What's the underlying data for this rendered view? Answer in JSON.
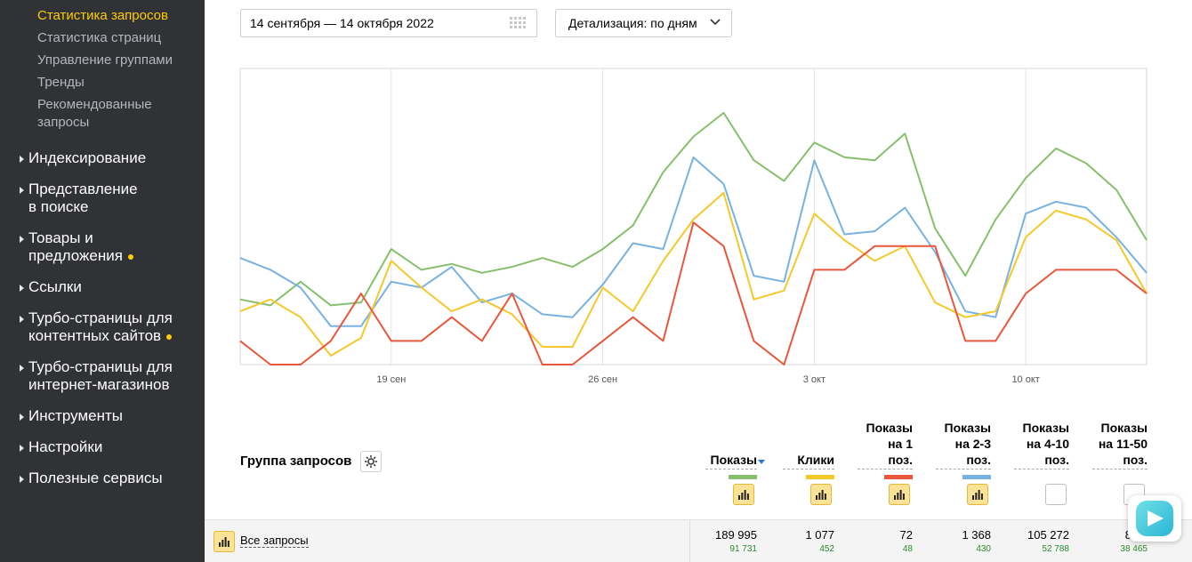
{
  "sidebar": {
    "sub_items": [
      "Статистика запросов",
      "Статистика страниц",
      "Управление группами",
      "Тренды",
      "Рекомендованные запросы"
    ],
    "sub_items_lines": [
      [
        "Статистика запросов"
      ],
      [
        "Статистика страниц"
      ],
      [
        "Управление группами"
      ],
      [
        "Тренды"
      ],
      [
        "Рекомендованные",
        "запросы"
      ]
    ],
    "sections": [
      {
        "line1": "Индексирование",
        "line2": ""
      },
      {
        "line1": "Представление",
        "line2": "в поиске"
      },
      {
        "line1": "Товары и",
        "line2": "предложения"
      },
      {
        "line1": "Ссылки",
        "line2": ""
      },
      {
        "line1": "Турбо-страницы для",
        "line2": "контентных сайтов"
      },
      {
        "line1": "Турбо-страницы для",
        "line2": "интернет-магазинов"
      },
      {
        "line1": "Инструменты",
        "line2": ""
      },
      {
        "line1": "Настройки",
        "line2": ""
      },
      {
        "line1": "Полезные сервисы",
        "line2": ""
      }
    ]
  },
  "controls": {
    "date_range": "14 сентября — 14 октября 2022",
    "detail_label": "Детализация: по дням"
  },
  "chart_data": {
    "type": "line",
    "x_tick_labels": [
      "19 сен",
      "26 сен",
      "3 окт",
      "10 окт"
    ],
    "x": [
      "14.09",
      "15.09",
      "16.09",
      "17.09",
      "18.09",
      "19.09",
      "20.09",
      "21.09",
      "22.09",
      "23.09",
      "24.09",
      "25.09",
      "26.09",
      "27.09",
      "28.09",
      "29.09",
      "30.09",
      "01.10",
      "02.10",
      "03.10",
      "04.10",
      "05.10",
      "06.10",
      "07.10",
      "08.10",
      "09.10",
      "10.10",
      "11.10",
      "12.10",
      "13.10",
      "14.10"
    ],
    "ylim": [
      0,
      100
    ],
    "grid": "vertical",
    "series": [
      {
        "color": "#86c06c",
        "values": [
          22,
          20,
          28,
          20,
          21,
          39,
          32,
          34,
          31,
          33,
          36,
          33,
          39,
          47,
          65,
          77,
          85,
          69,
          62,
          75,
          70,
          69,
          78,
          46,
          30,
          49,
          63,
          73,
          68,
          59,
          42
        ]
      },
      {
        "color": "#78b2e0",
        "values": [
          36,
          32,
          26,
          13,
          13,
          28,
          26,
          33,
          21,
          24,
          17,
          16,
          27,
          41,
          39,
          70,
          61,
          30,
          28,
          69,
          44,
          45,
          53,
          38,
          18,
          16,
          51,
          55,
          53,
          43,
          31
        ]
      },
      {
        "color": "#f5c82a",
        "values": [
          18,
          22,
          16,
          3,
          9,
          35,
          26,
          18,
          22,
          17,
          6,
          6,
          26,
          18,
          35,
          49,
          58,
          22,
          25,
          51,
          42,
          35,
          40,
          21,
          16,
          18,
          43,
          52,
          49,
          42,
          24
        ]
      },
      {
        "color": "#e8573c",
        "values": [
          8,
          0,
          0,
          8,
          24,
          8,
          8,
          16,
          8,
          24,
          0,
          0,
          8,
          16,
          8,
          48,
          40,
          8,
          0,
          32,
          32,
          40,
          40,
          40,
          8,
          8,
          24,
          32,
          32,
          32,
          24
        ]
      }
    ]
  },
  "table": {
    "group_title": "Группа запросов",
    "columns": [
      {
        "label": "Показы",
        "color": "#86c06c",
        "toggle": "on",
        "sorted": true
      },
      {
        "label": "Клики",
        "color": "#f5c82a",
        "toggle": "on",
        "sorted": false
      },
      {
        "label": "Показы\nна 1\nпоз.",
        "color": "#e8573c",
        "toggle": "on",
        "sorted": false
      },
      {
        "label": "Показы\nна 2-3\nпоз.",
        "color": "#78b2e0",
        "toggle": "on",
        "sorted": false
      },
      {
        "label": "Показы\nна 4-10\nпоз.",
        "color": "",
        "toggle": "off",
        "sorted": false
      },
      {
        "label": "Показы\nна 11-50\nпоз.",
        "color": "",
        "toggle": "off",
        "sorted": false
      }
    ],
    "rows": [
      {
        "name": "Все запросы",
        "values": [
          "189 995",
          "1 077",
          "72",
          "1 368",
          "105 272",
          "83 1"
        ],
        "subvalues": [
          "91 731",
          "452",
          "48",
          "430",
          "52 788",
          "38 465"
        ]
      }
    ]
  }
}
